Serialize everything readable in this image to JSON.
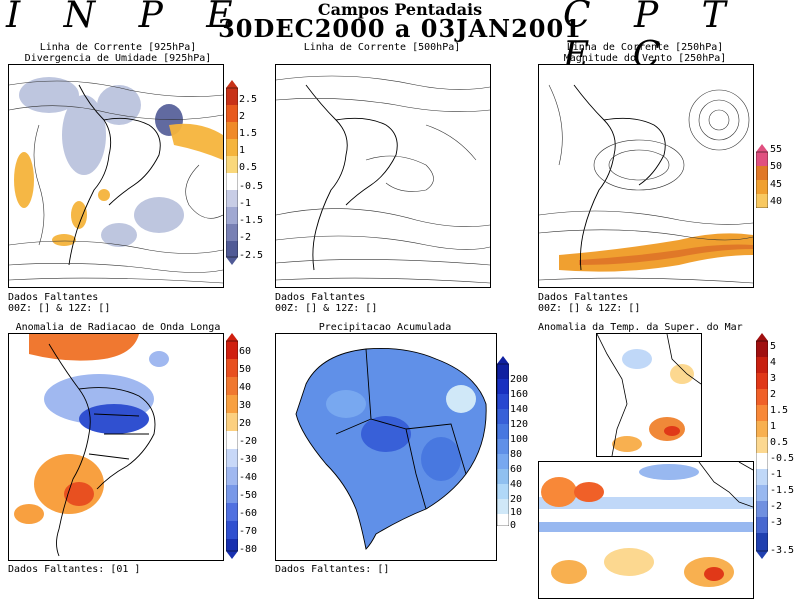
{
  "header": {
    "brand_left": "I N P E",
    "brand_right": "C P T E C",
    "title": "Campos Pentadais",
    "period": "30DEC2000 a 03JAN2001"
  },
  "panels": {
    "p1": {
      "title1": "Linha de Corrente [925hPa]",
      "title2": "Divergencia de Umidade [925hPa]"
    },
    "p2": {
      "title1": "Linha de Corrente [500hPa]"
    },
    "p3": {
      "title1": "Linha de Corrente [250hPa]",
      "title2": "Magnitude do Vento [250hPa]"
    },
    "p4": {
      "title1": "Anomalia de Radiacao de Onda Longa",
      "footer": "Dados Faltantes: [01 ]"
    },
    "p5": {
      "title1": "Precipitacao Acumulada",
      "footer": "Dados Faltantes: []"
    },
    "p6": {
      "title1": "Anomalia da Temp. da Super. do Mar"
    }
  },
  "missing": {
    "label": "Dados Faltantes",
    "times": "00Z: [] & 12Z: []"
  },
  "chart_data": [
    {
      "type": "heatmap",
      "title": "Divergencia de Umidade [925hPa]",
      "colorbar": [
        "2.5",
        "2",
        "1.5",
        "1",
        "0.5",
        "-0.5",
        "-1",
        "-1.5",
        "-2",
        "-2.5"
      ],
      "colors": [
        "#c83218",
        "#e85a1e",
        "#f08a28",
        "#f5b43c",
        "#fad87a",
        "#ffffff",
        "#c8cde6",
        "#a0a8d2",
        "#7880b4",
        "#505a96"
      ]
    },
    {
      "type": "heatmap",
      "title": "Magnitude do Vento [250hPa]",
      "colorbar": [
        "55",
        "50",
        "45",
        "40"
      ],
      "colors": [
        "#e05080",
        "#e07828",
        "#f0a030",
        "#f8c860"
      ]
    },
    {
      "type": "heatmap",
      "title": "Anomalia de Radiacao de Onda Longa",
      "colorbar": [
        "60",
        "50",
        "40",
        "30",
        "20",
        "-20",
        "-30",
        "-40",
        "-50",
        "-60",
        "-70",
        "-80"
      ],
      "colors": [
        "#d02010",
        "#e85020",
        "#f07830",
        "#f8a040",
        "#fcd080",
        "#ffffff",
        "#c8d8f8",
        "#a0b8f0",
        "#7898e8",
        "#5070e0",
        "#3050d0",
        "#1830b0"
      ]
    },
    {
      "type": "heatmap",
      "title": "Precipitacao Acumulada",
      "colorbar": [
        "200",
        "160",
        "140",
        "120",
        "100",
        "80",
        "60",
        "40",
        "20",
        "10",
        "0"
      ],
      "colors": [
        "#1020a0",
        "#1830c0",
        "#2848d0",
        "#3860d8",
        "#4878e0",
        "#6090e8",
        "#78a8f0",
        "#90c0f0",
        "#b0d8f8",
        "#d0e8f8",
        "#ffffff"
      ]
    },
    {
      "type": "heatmap",
      "title": "Anomalia da Temp. da Super. do Mar",
      "colorbar": [
        "5",
        "4",
        "3",
        "2",
        "1.5",
        "1",
        "0.5",
        "-0.5",
        "-1",
        "-1.5",
        "-2",
        "-3",
        "-3.5"
      ],
      "colors": [
        "#a01010",
        "#c82010",
        "#e03818",
        "#f06028",
        "#f88838",
        "#f8b050",
        "#fcd890",
        "#ffffff",
        "#c0d8f8",
        "#98b8f0",
        "#7090e0",
        "#4868d0",
        "#2040b0"
      ]
    }
  ]
}
